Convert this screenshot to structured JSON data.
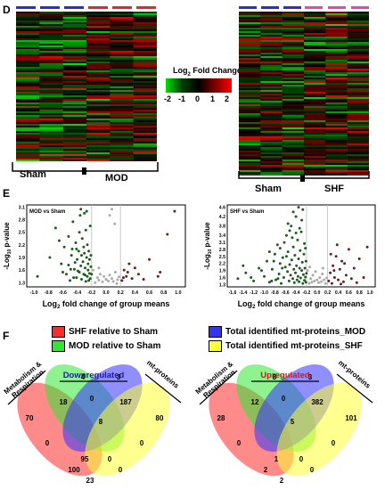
{
  "panel_d": {
    "letter": "D",
    "left_heatmap": {
      "groups": [
        "Sham",
        "MOD"
      ]
    },
    "right_heatmap": {
      "groups": [
        "Sham",
        "SHF"
      ]
    },
    "legend": {
      "title_pre": "Log",
      "title_sub": "2",
      "title_post": " Fold Change",
      "ticks": [
        "-2",
        "-1",
        "0",
        "1",
        "2"
      ],
      "colors": [
        "#00e000",
        "#004000",
        "#000000",
        "#800000",
        "#ff0000"
      ]
    },
    "colors": {
      "sham_bar": "#2b2bd8",
      "mod_bar": "#e02a2a",
      "shf_bar": "#e04aa8"
    }
  },
  "panel_e": {
    "letter": "E",
    "ylabel_pre": "-Log",
    "ylabel_sub": "10",
    "ylabel_post": " p-value",
    "xlabel_pre": "Log",
    "xlabel_sub": "2",
    "xlabel_post": " fold change of group means"
  },
  "chart_data": [
    {
      "type": "scatter",
      "title": "MOD vs Sham",
      "x_ticks": [
        "-1.0",
        "-0.8",
        "-0.6",
        "-0.4",
        "-0.2",
        "0.0",
        "0.2",
        "0.4",
        "0.6",
        "0.8",
        "1.0"
      ],
      "y_ticks": [
        "1.3",
        "1.6",
        "1.9",
        "2.2",
        "2.5",
        "2.8",
        "3.1"
      ],
      "xlim": [
        -1.1,
        1.1
      ],
      "ylim": [
        1.2,
        3.15
      ],
      "thresholds_x": [
        -0.2,
        0.2
      ],
      "series": [
        {
          "color": "#1f5c1f",
          "points": [
            [
              -0.95,
              1.45
            ],
            [
              -0.78,
              1.9
            ],
            [
              -0.7,
              2.6
            ],
            [
              -0.62,
              1.75
            ],
            [
              -0.58,
              2.15
            ],
            [
              -0.55,
              1.5
            ],
            [
              -0.52,
              2.4
            ],
            [
              -0.5,
              1.35
            ],
            [
              -0.48,
              1.95
            ],
            [
              -0.46,
              2.75
            ],
            [
              -0.44,
              1.62
            ],
            [
              -0.42,
              2.25
            ],
            [
              -0.41,
              1.42
            ],
            [
              -0.4,
              1.85
            ],
            [
              -0.38,
              2.05
            ],
            [
              -0.37,
              1.55
            ],
            [
              -0.36,
              2.9
            ],
            [
              -0.35,
              1.7
            ],
            [
              -0.34,
              1.38
            ],
            [
              -0.33,
              2.35
            ],
            [
              -0.32,
              1.8
            ],
            [
              -0.31,
              1.5
            ],
            [
              -0.3,
              2.0
            ],
            [
              -0.29,
              1.65
            ],
            [
              -0.28,
              1.33
            ],
            [
              -0.28,
              2.55
            ],
            [
              -0.27,
              1.9
            ],
            [
              -0.26,
              1.45
            ],
            [
              -0.26,
              2.2
            ],
            [
              -0.25,
              1.75
            ],
            [
              -0.25,
              1.6
            ],
            [
              -0.24,
              1.35
            ],
            [
              -0.24,
              2.05
            ],
            [
              -0.23,
              1.52
            ],
            [
              -0.23,
              1.85
            ],
            [
              -0.22,
              1.4
            ],
            [
              -0.22,
              2.65
            ],
            [
              -0.21,
              1.68
            ],
            [
              -0.35,
              3.05
            ],
            [
              -0.3,
              2.95
            ],
            [
              -0.27,
              3.0
            ],
            [
              -0.45,
              1.42
            ],
            [
              -0.39,
              1.58
            ],
            [
              -0.43,
              1.78
            ],
            [
              -0.47,
              2.1
            ],
            [
              -0.52,
              1.72
            ],
            [
              -0.6,
              1.55
            ],
            [
              -0.65,
              2.3
            ],
            [
              -0.2,
              1.5
            ],
            [
              -0.21,
              1.95
            ],
            [
              -0.34,
              1.95
            ],
            [
              -0.31,
              2.15
            ],
            [
              -0.29,
              1.48
            ],
            [
              -0.37,
              2.5
            ],
            [
              -0.41,
              2.1
            ],
            [
              -0.49,
              1.62
            ]
          ]
        },
        {
          "color": "#6b1f1f",
          "points": [
            [
              0.22,
              1.35
            ],
            [
              0.25,
              1.6
            ],
            [
              0.28,
              1.45
            ],
            [
              0.32,
              1.75
            ],
            [
              0.36,
              1.4
            ],
            [
              0.4,
              1.65
            ],
            [
              0.45,
              1.5
            ],
            [
              0.52,
              1.38
            ],
            [
              0.6,
              1.85
            ],
            [
              0.75,
              1.55
            ],
            [
              0.85,
              2.45
            ],
            [
              0.95,
              3.0
            ],
            [
              0.72,
              1.45
            ],
            [
              0.3,
              1.55
            ],
            [
              0.24,
              1.42
            ]
          ]
        },
        {
          "color": "#aaaaaa",
          "points": [
            [
              -0.15,
              1.3
            ],
            [
              -0.12,
              1.42
            ],
            [
              -0.1,
              1.36
            ],
            [
              -0.08,
              1.5
            ],
            [
              -0.05,
              1.32
            ],
            [
              -0.03,
              1.45
            ],
            [
              0.0,
              1.38
            ],
            [
              0.03,
              1.34
            ],
            [
              0.05,
              1.48
            ],
            [
              0.08,
              1.4
            ],
            [
              0.1,
              1.33
            ],
            [
              0.13,
              1.55
            ],
            [
              0.16,
              1.37
            ],
            [
              -0.18,
              1.6
            ],
            [
              0.18,
              1.44
            ],
            [
              0.12,
              2.7
            ],
            [
              0.05,
              2.9
            ],
            [
              0.08,
              3.05
            ],
            [
              -0.1,
              1.65
            ],
            [
              0.15,
              1.28
            ]
          ]
        }
      ]
    },
    {
      "type": "scatter",
      "title": "SHF vs Sham",
      "x_ticks": [
        "-1.6",
        "-1.4",
        "-1.2",
        "-1.0",
        "-0.8",
        "-0.6",
        "-0.4",
        "-0.2",
        "0.0",
        "0.2",
        "0.4",
        "0.6",
        "0.8",
        "1.0"
      ],
      "y_ticks": [
        "1.3",
        "1.6",
        "1.9",
        "2.2",
        "2.5",
        "2.8",
        "3.1",
        "3.4",
        "3.8",
        "4.2",
        "4.6"
      ],
      "xlim": [
        -1.7,
        1.1
      ],
      "ylim": [
        1.2,
        4.7
      ],
      "thresholds_x": [
        -0.2,
        0.2
      ],
      "series": [
        {
          "color": "#1f5c1f",
          "points": [
            [
              -1.5,
              1.55
            ],
            [
              -1.35,
              1.8
            ],
            [
              -1.2,
              1.45
            ],
            [
              -1.1,
              2.0
            ],
            [
              -1.0,
              1.65
            ],
            [
              -0.95,
              2.3
            ],
            [
              -0.9,
              1.4
            ],
            [
              -0.85,
              1.95
            ],
            [
              -0.8,
              2.6
            ],
            [
              -0.78,
              1.5
            ],
            [
              -0.75,
              3.0
            ],
            [
              -0.72,
              1.75
            ],
            [
              -0.7,
              2.2
            ],
            [
              -0.68,
              1.35
            ],
            [
              -0.65,
              2.45
            ],
            [
              -0.63,
              1.6
            ],
            [
              -0.6,
              2.05
            ],
            [
              -0.58,
              3.4
            ],
            [
              -0.56,
              1.85
            ],
            [
              -0.55,
              2.7
            ],
            [
              -0.53,
              1.45
            ],
            [
              -0.52,
              2.15
            ],
            [
              -0.5,
              1.7
            ],
            [
              -0.49,
              3.8
            ],
            [
              -0.48,
              2.35
            ],
            [
              -0.46,
              1.55
            ],
            [
              -0.45,
              2.9
            ],
            [
              -0.44,
              1.95
            ],
            [
              -0.43,
              1.38
            ],
            [
              -0.42,
              2.55
            ],
            [
              -0.41,
              1.8
            ],
            [
              -0.4,
              4.2
            ],
            [
              -0.39,
              2.1
            ],
            [
              -0.38,
              1.5
            ],
            [
              -0.37,
              3.2
            ],
            [
              -0.36,
              1.65
            ],
            [
              -0.35,
              2.4
            ],
            [
              -0.34,
              1.42
            ],
            [
              -0.33,
              2.0
            ],
            [
              -0.32,
              2.75
            ],
            [
              -0.31,
              1.58
            ],
            [
              -0.3,
              3.55
            ],
            [
              -0.29,
              1.9
            ],
            [
              -0.28,
              2.25
            ],
            [
              -0.27,
              1.35
            ],
            [
              -0.27,
              4.5
            ],
            [
              -0.26,
              1.72
            ],
            [
              -0.25,
              2.6
            ],
            [
              -0.24,
              1.48
            ],
            [
              -0.24,
              3.05
            ],
            [
              -0.23,
              2.0
            ],
            [
              -0.22,
              1.62
            ],
            [
              -0.22,
              2.85
            ],
            [
              -0.21,
              1.4
            ],
            [
              -0.21,
              2.3
            ],
            [
              -0.2,
              1.78
            ],
            [
              -0.45,
              4.4
            ],
            [
              -0.35,
              4.6
            ],
            [
              -0.55,
              3.9
            ],
            [
              -0.62,
              3.1
            ],
            [
              -0.7,
              2.85
            ],
            [
              -0.82,
              2.3
            ],
            [
              -0.9,
              2.7
            ],
            [
              -1.05,
              1.9
            ],
            [
              -1.25,
              1.6
            ],
            [
              -1.4,
              2.1
            ],
            [
              -0.33,
              3.7
            ],
            [
              -0.29,
              4.05
            ],
            [
              -0.4,
              3.5
            ],
            [
              -0.47,
              3.3
            ],
            [
              -0.52,
              3.6
            ],
            [
              -0.58,
              2.5
            ],
            [
              -0.66,
              2.0
            ],
            [
              -0.74,
              1.55
            ],
            [
              -0.86,
              1.45
            ]
          ]
        },
        {
          "color": "#6b1f1f",
          "points": [
            [
              0.22,
              1.45
            ],
            [
              0.25,
              1.8
            ],
            [
              0.28,
              1.35
            ],
            [
              0.3,
              2.1
            ],
            [
              0.33,
              1.6
            ],
            [
              0.36,
              2.5
            ],
            [
              0.4,
              1.5
            ],
            [
              0.43,
              1.95
            ],
            [
              0.47,
              2.3
            ],
            [
              0.5,
              1.42
            ],
            [
              0.55,
              1.7
            ],
            [
              0.6,
              2.8
            ],
            [
              0.65,
              1.55
            ],
            [
              0.7,
              2.0
            ],
            [
              0.75,
              1.38
            ],
            [
              0.8,
              2.4
            ],
            [
              0.88,
              1.6
            ],
            [
              0.95,
              2.9
            ],
            [
              0.26,
              2.6
            ],
            [
              0.38,
              3.0
            ],
            [
              0.52,
              2.2
            ],
            [
              0.45,
              1.32
            ],
            [
              0.32,
              1.9
            ]
          ]
        },
        {
          "color": "#aaaaaa",
          "points": [
            [
              -0.15,
              1.35
            ],
            [
              -0.12,
              1.55
            ],
            [
              -0.1,
              1.4
            ],
            [
              -0.08,
              1.7
            ],
            [
              -0.05,
              1.45
            ],
            [
              -0.03,
              1.85
            ],
            [
              0.0,
              1.5
            ],
            [
              0.03,
              1.38
            ],
            [
              0.05,
              1.6
            ],
            [
              0.08,
              1.42
            ],
            [
              0.1,
              1.75
            ],
            [
              0.13,
              1.5
            ],
            [
              0.16,
              1.34
            ],
            [
              -0.18,
              1.9
            ],
            [
              0.18,
              1.58
            ],
            [
              -0.14,
              2.05
            ],
            [
              0.11,
              2.0
            ]
          ]
        }
      ]
    }
  ],
  "panel_f": {
    "letter": "F",
    "legend": [
      {
        "label": "SHF relative to Sham",
        "color": "#ff2a2a"
      },
      {
        "label": "MOD relative to Sham",
        "color": "#33e633"
      },
      {
        "label": "Total identified mt-proteins_MOD",
        "color": "#3333ff"
      },
      {
        "label": "Total identified mt-proteins_SHF",
        "color": "#ffff33"
      }
    ],
    "left": {
      "title": "Downregulated",
      "title_color": "#1a1aaa",
      "set_left": "Metabolism & Respiration",
      "set_right": "mt-proteins",
      "numbers": [
        "70",
        "4",
        "3",
        "80",
        "18",
        "0",
        "187",
        "0",
        "8",
        "0",
        "95",
        "100",
        "0",
        "0",
        "23"
      ]
    },
    "right": {
      "title": "Upregulated",
      "title_color": "#dd1111",
      "set_left": "Metabolism & Respiration",
      "set_right": "mt-proteins",
      "numbers": [
        "28",
        "8",
        "3",
        "101",
        "12",
        "0",
        "382",
        "0",
        "5",
        "0",
        "1",
        "2",
        "0",
        "0",
        "2"
      ]
    }
  }
}
